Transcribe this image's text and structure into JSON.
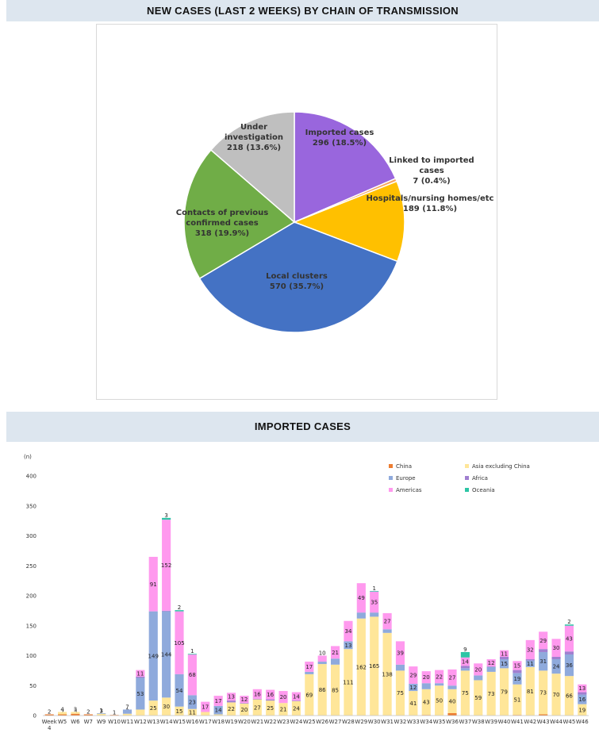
{
  "pie": {
    "title": "NEW CASES (LAST 2 WEEKS) BY CHAIN OF TRANSMISSION",
    "slices": [
      {
        "lines": [
          "Imported cases",
          "296 (18.5%)"
        ],
        "value": 296,
        "color": "#9966dd"
      },
      {
        "lines": [
          "Linked to imported",
          "cases",
          "7 (0.4%)"
        ],
        "value": 7,
        "color": "#f4a460"
      },
      {
        "lines": [
          "Hospitals/nursing homes/etc",
          "189 (11.8%)"
        ],
        "value": 189,
        "color": "#ffc000"
      },
      {
        "lines": [
          "Local clusters",
          "570 (35.7%)"
        ],
        "value": 570,
        "color": "#4472c4"
      },
      {
        "lines": [
          "Contacts of previous",
          "confirmed cases",
          "318 (19.9%)"
        ],
        "value": 318,
        "color": "#70ad47"
      },
      {
        "lines": [
          "Under",
          "investigation",
          "218 (13.6%)"
        ],
        "value": 218,
        "color": "#bfbfbf"
      }
    ]
  },
  "chart_data": {
    "type": "bar",
    "stacked": true,
    "title": "IMPORTED CASES",
    "ylabel": "(n)",
    "ylim": [
      0,
      400
    ],
    "yticks": [
      0,
      50,
      100,
      150,
      200,
      250,
      300,
      350,
      400
    ],
    "categories": [
      "Week 4",
      "W5",
      "W6",
      "W7",
      "W9",
      "W10",
      "W11",
      "W12",
      "W13",
      "W14",
      "W15",
      "W16",
      "W17",
      "W18",
      "W19",
      "W20",
      "W21",
      "W22",
      "W23",
      "W24",
      "W25",
      "W26",
      "W27",
      "W28",
      "W29",
      "W30",
      "W31",
      "W32",
      "W33",
      "W34",
      "W35",
      "W36",
      "W37",
      "W38",
      "W39",
      "W40",
      "W41",
      "W42",
      "W43",
      "W44",
      "W45",
      "W46"
    ],
    "series": [
      {
        "name": "China",
        "color": "#ed7d31",
        "values": [
          2,
          2,
          3,
          2,
          0,
          1,
          0,
          0,
          0,
          0,
          0,
          0,
          0,
          0,
          0,
          0,
          0,
          0,
          0,
          0,
          0,
          0,
          0,
          0,
          0,
          0,
          0,
          0,
          0,
          1,
          0,
          4,
          0,
          0,
          0,
          0,
          1,
          0,
          2,
          0,
          0,
          0
        ]
      },
      {
        "name": "Asia excluding China",
        "color": "#ffe699",
        "values": [
          0,
          4,
          3,
          0,
          3,
          0,
          3,
          10,
          25,
          30,
          15,
          11,
          6,
          2,
          22,
          20,
          27,
          25,
          21,
          24,
          69,
          86,
          85,
          111,
          162,
          165,
          138,
          75,
          41,
          43,
          50,
          40,
          75,
          59,
          73,
          79,
          51,
          81,
          73,
          70,
          66,
          19
        ]
      },
      {
        "name": "Europe",
        "color": "#8faadc",
        "values": [
          0,
          0,
          0,
          0,
          1,
          0,
          7,
          53,
          149,
          144,
          54,
          23,
          0,
          14,
          0,
          0,
          0,
          0,
          0,
          0,
          4,
          4,
          10,
          13,
          10,
          7,
          6,
          10,
          12,
          10,
          4,
          6,
          4,
          8,
          8,
          15,
          19,
          11,
          31,
          24,
          36,
          16
        ]
      },
      {
        "name": "Africa",
        "color": "#a07fd0",
        "values": [
          0,
          0,
          0,
          0,
          0,
          0,
          0,
          2,
          0,
          1,
          0,
          0,
          0,
          0,
          3,
          1,
          1,
          2,
          0,
          1,
          0,
          0,
          0,
          0,
          0,
          0,
          0,
          0,
          0,
          0,
          0,
          0,
          4,
          0,
          1,
          4,
          5,
          2,
          5,
          4,
          5,
          4
        ]
      },
      {
        "name": "Americas",
        "color": "#ff99ee",
        "values": [
          0,
          0,
          0,
          0,
          0,
          0,
          0,
          11,
          91,
          152,
          105,
          68,
          17,
          17,
          13,
          12,
          16,
          16,
          20,
          14,
          17,
          10,
          21,
          34,
          49,
          35,
          27,
          39,
          29,
          20,
          22,
          27,
          14,
          20,
          12,
          11,
          15,
          32,
          29,
          30,
          43,
          13
        ]
      },
      {
        "name": "Oceania",
        "color": "#2cc5a5",
        "values": [
          0,
          0,
          0,
          0,
          0,
          0,
          0,
          0,
          0,
          3,
          2,
          1,
          0,
          0,
          0,
          0,
          0,
          0,
          0,
          0,
          0,
          0,
          0,
          0,
          0,
          1,
          0,
          0,
          0,
          0,
          0,
          0,
          9,
          0,
          0,
          0,
          0,
          0,
          0,
          0,
          2,
          0
        ]
      }
    ]
  }
}
